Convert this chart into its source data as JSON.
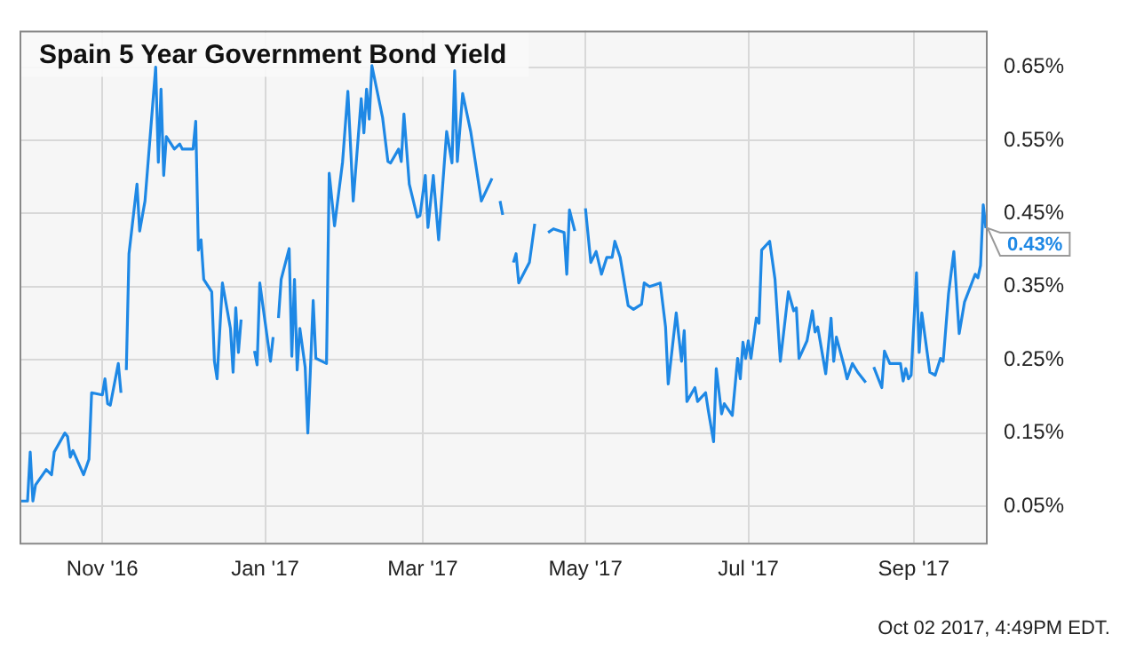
{
  "chart_data": {
    "type": "line",
    "title": "Spain 5 Year Government Bond Yield",
    "x": [
      "2016-10-01",
      "2016-10-04",
      "2016-10-05",
      "2016-10-06",
      "2016-10-07",
      "2016-10-11",
      "2016-10-13",
      "2016-10-14",
      "2016-10-18",
      "2016-10-19",
      "2016-10-20",
      "2016-10-21",
      "2016-10-25",
      "2016-10-27",
      "2016-10-28",
      "2016-11-01",
      "2016-11-02",
      "2016-11-03",
      "2016-11-04",
      "2016-11-07",
      "2016-11-08",
      "2016-11-09",
      "2016-11-10",
      "2016-11-11",
      "2016-11-14",
      "2016-11-15",
      "2016-11-17",
      "2016-11-21",
      "2016-11-22",
      "2016-11-23",
      "2016-11-24",
      "2016-11-25",
      "2016-11-28",
      "2016-11-30",
      "2016-12-01",
      "2016-12-05",
      "2016-12-06",
      "2016-12-07",
      "2016-12-08",
      "2016-12-09",
      "2016-12-12",
      "2016-12-13",
      "2016-12-14",
      "2016-12-16",
      "2016-12-19",
      "2016-12-20",
      "2016-12-21",
      "2016-12-22",
      "2016-12-23",
      "2016-12-26",
      "2016-12-28",
      "2016-12-29",
      "2016-12-30",
      "2017-01-03",
      "2017-01-04",
      "2017-01-05",
      "2017-01-06",
      "2017-01-07",
      "2017-01-10",
      "2017-01-11",
      "2017-01-12",
      "2017-01-13",
      "2017-01-14",
      "2017-01-16",
      "2017-01-17",
      "2017-01-19",
      "2017-01-20",
      "2017-01-24",
      "2017-01-25",
      "2017-01-27",
      "2017-01-30",
      "2017-02-01",
      "2017-02-03",
      "2017-02-06",
      "2017-02-07",
      "2017-02-08",
      "2017-02-09",
      "2017-02-10",
      "2017-02-14",
      "2017-02-16",
      "2017-02-17",
      "2017-02-20",
      "2017-02-21",
      "2017-02-22",
      "2017-02-24",
      "2017-02-27",
      "2017-02-28",
      "2017-03-02",
      "2017-03-03",
      "2017-03-05",
      "2017-03-07",
      "2017-03-10",
      "2017-03-12",
      "2017-03-13",
      "2017-03-14",
      "2017-03-16",
      "2017-03-19",
      "2017-03-23",
      "2017-03-27",
      "2017-03-28",
      "2017-03-30",
      "2017-03-31",
      "2017-04-01",
      "2017-04-04",
      "2017-04-05",
      "2017-04-06",
      "2017-04-10",
      "2017-04-12",
      "2017-04-14",
      "2017-04-17",
      "2017-04-19",
      "2017-04-23",
      "2017-04-24",
      "2017-04-25",
      "2017-04-27",
      "2017-04-28",
      "2017-05-01",
      "2017-05-03",
      "2017-05-05",
      "2017-05-07",
      "2017-05-09",
      "2017-05-11",
      "2017-05-12",
      "2017-05-14",
      "2017-05-17",
      "2017-05-19",
      "2017-05-22",
      "2017-05-23",
      "2017-05-25",
      "2017-05-29",
      "2017-05-31",
      "2017-06-01",
      "2017-06-04",
      "2017-06-06",
      "2017-06-07",
      "2017-06-08",
      "2017-06-11",
      "2017-06-12",
      "2017-06-15",
      "2017-06-16",
      "2017-06-18",
      "2017-06-19",
      "2017-06-21",
      "2017-06-22",
      "2017-06-25",
      "2017-06-27",
      "2017-06-28",
      "2017-06-29",
      "2017-06-30",
      "2017-07-01",
      "2017-07-02",
      "2017-07-04",
      "2017-07-05",
      "2017-07-06",
      "2017-07-09",
      "2017-07-11",
      "2017-07-13",
      "2017-07-16",
      "2017-07-18",
      "2017-07-19",
      "2017-07-20",
      "2017-07-23",
      "2017-07-25",
      "2017-07-26",
      "2017-07-27",
      "2017-07-30",
      "2017-08-01",
      "2017-08-02",
      "2017-08-03",
      "2017-08-06",
      "2017-08-07",
      "2017-08-09",
      "2017-08-11",
      "2017-08-14",
      "2017-08-16",
      "2017-08-17",
      "2017-08-20",
      "2017-08-21",
      "2017-08-23",
      "2017-08-27",
      "2017-08-28",
      "2017-08-29",
      "2017-08-30",
      "2017-08-31",
      "2017-09-02",
      "2017-09-03",
      "2017-09-04",
      "2017-09-07",
      "2017-09-09",
      "2017-09-11",
      "2017-09-12",
      "2017-09-14",
      "2017-09-16",
      "2017-09-18",
      "2017-09-20",
      "2017-09-24",
      "2017-09-25",
      "2017-09-26",
      "2017-09-27",
      "2017-09-28"
    ],
    "series": [
      {
        "color": "#1e88e5",
        "values": [
          0.057,
          0.057,
          0.124,
          0.057,
          0.079,
          0.1,
          0.093,
          0.124,
          0.15,
          0.145,
          0.117,
          0.126,
          0.093,
          0.114,
          0.205,
          0.202,
          0.224,
          0.19,
          0.188,
          0.245,
          0.205,
          null,
          0.236,
          0.395,
          0.49,
          0.426,
          0.467,
          0.65,
          0.52,
          0.62,
          0.502,
          0.555,
          0.538,
          0.545,
          0.538,
          0.538,
          0.576,
          0.4,
          0.414,
          0.36,
          0.343,
          0.248,
          0.224,
          0.355,
          0.293,
          0.233,
          0.321,
          0.26,
          0.305,
          null,
          0.262,
          0.243,
          0.355,
          0.248,
          0.281,
          null,
          0.307,
          0.36,
          0.402,
          0.255,
          0.36,
          0.236,
          0.293,
          0.24,
          0.15,
          0.331,
          0.252,
          0.245,
          0.505,
          0.433,
          0.52,
          0.617,
          0.467,
          0.607,
          0.56,
          0.62,
          0.579,
          0.652,
          0.581,
          0.521,
          0.519,
          0.538,
          0.521,
          0.586,
          0.49,
          0.445,
          0.447,
          0.502,
          0.431,
          0.502,
          0.414,
          0.562,
          0.519,
          0.645,
          0.521,
          0.614,
          0.562,
          0.467,
          0.498,
          null,
          0.467,
          0.448,
          null,
          0.383,
          0.395,
          0.355,
          0.383,
          0.436,
          null,
          0.424,
          0.429,
          0.424,
          0.367,
          0.455,
          0.426,
          null,
          0.457,
          0.383,
          0.398,
          0.367,
          0.39,
          0.39,
          0.412,
          0.39,
          0.324,
          0.319,
          0.326,
          0.355,
          0.35,
          0.355,
          0.295,
          0.217,
          0.314,
          0.248,
          0.29,
          0.193,
          0.212,
          0.193,
          0.205,
          0.181,
          0.138,
          0.238,
          0.176,
          0.19,
          0.174,
          0.252,
          0.224,
          0.274,
          0.252,
          0.276,
          0.252,
          0.307,
          0.3,
          0.4,
          0.412,
          0.36,
          0.248,
          0.343,
          0.317,
          0.321,
          0.252,
          0.276,
          0.317,
          0.288,
          0.295,
          0.231,
          0.307,
          0.248,
          0.281,
          0.24,
          0.224,
          0.245,
          0.233,
          0.219,
          null,
          0.24,
          0.212,
          0.262,
          0.245,
          0.245,
          0.221,
          0.238,
          0.224,
          0.229,
          0.369,
          0.26,
          0.314,
          0.233,
          0.229,
          0.252,
          0.248,
          0.34,
          0.398,
          0.286,
          0.329,
          0.367,
          0.362,
          0.379,
          0.462,
          0.43
        ]
      }
    ],
    "xlim": [
      "2016-10-01",
      "2017-09-28"
    ],
    "xticks": [
      {
        "value": "2016-11-01",
        "label": "Nov '16"
      },
      {
        "value": "2017-01-01",
        "label": "Jan '17"
      },
      {
        "value": "2017-03-01",
        "label": "Mar '17"
      },
      {
        "value": "2017-05-01",
        "label": "May '17"
      },
      {
        "value": "2017-07-01",
        "label": "Jul '17"
      },
      {
        "value": "2017-09-01",
        "label": "Sep '17"
      }
    ],
    "ylim": [
      0,
      0.7
    ],
    "yticks": [
      {
        "value": 0.05,
        "label": "0.05%"
      },
      {
        "value": 0.15,
        "label": "0.15%"
      },
      {
        "value": 0.25,
        "label": "0.25%"
      },
      {
        "value": 0.35,
        "label": "0.35%"
      },
      {
        "value": 0.45,
        "label": "0.45%"
      },
      {
        "value": 0.55,
        "label": "0.55%"
      },
      {
        "value": 0.65,
        "label": "0.65%"
      }
    ],
    "grid": true,
    "annotations": [
      {
        "text": "0.43%",
        "x": "2017-09-28",
        "y": 0.43
      },
      "Oct 02 2017, 4:49PM EDT."
    ]
  }
}
